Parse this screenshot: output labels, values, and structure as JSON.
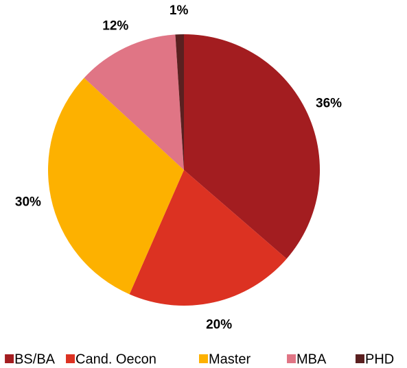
{
  "chart_data": {
    "type": "pie",
    "categories": [
      "BS/BA",
      "Cand. Oecon",
      "Master",
      "MBA",
      "PHD"
    ],
    "values": [
      36,
      20,
      30,
      12,
      1
    ],
    "value_labels": [
      "36%",
      "20%",
      "30%",
      "12%",
      "1%"
    ],
    "colors": [
      "#a31d20",
      "#dc3222",
      "#fdb100",
      "#e07585",
      "#5a2020"
    ],
    "legend": "bottom"
  }
}
